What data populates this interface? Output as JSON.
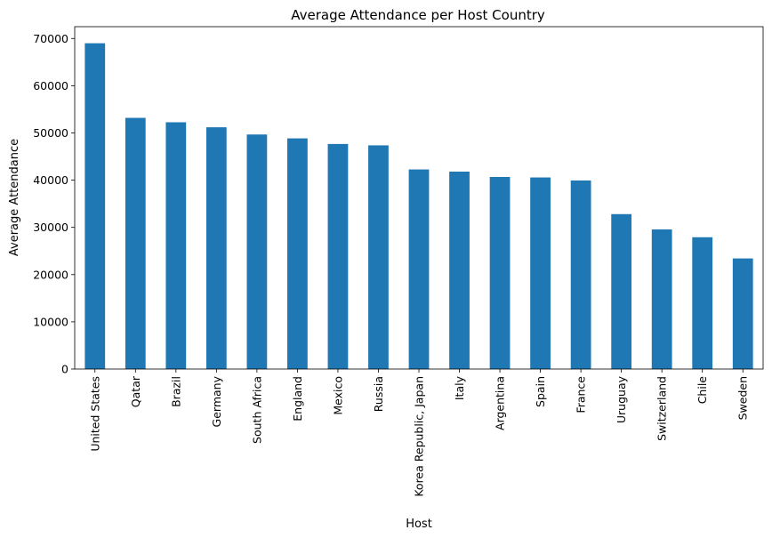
{
  "chart_data": {
    "type": "bar",
    "title": "Average Attendance per Host Country",
    "xlabel": "Host",
    "ylabel": "Average Attendance",
    "categories": [
      "United States",
      "Qatar",
      "Brazil",
      "Germany",
      "South Africa",
      "England",
      "Mexico",
      "Russia",
      "Korea Republic, Japan",
      "Italy",
      "Argentina",
      "Spain",
      "France",
      "Uruguay",
      "Switzerland",
      "Chile",
      "Sweden"
    ],
    "values": [
      68991,
      53191,
      52259,
      51198,
      49669,
      48848,
      47661,
      47371,
      42269,
      41807,
      40679,
      40572,
      39937,
      32808,
      29562,
      27911,
      23423
    ],
    "ylim": [
      0,
      72500
    ],
    "yticks": [
      0,
      10000,
      20000,
      30000,
      40000,
      50000,
      60000,
      70000
    ],
    "grid": false,
    "legend": "none",
    "bar_color": "#1f77b4"
  }
}
